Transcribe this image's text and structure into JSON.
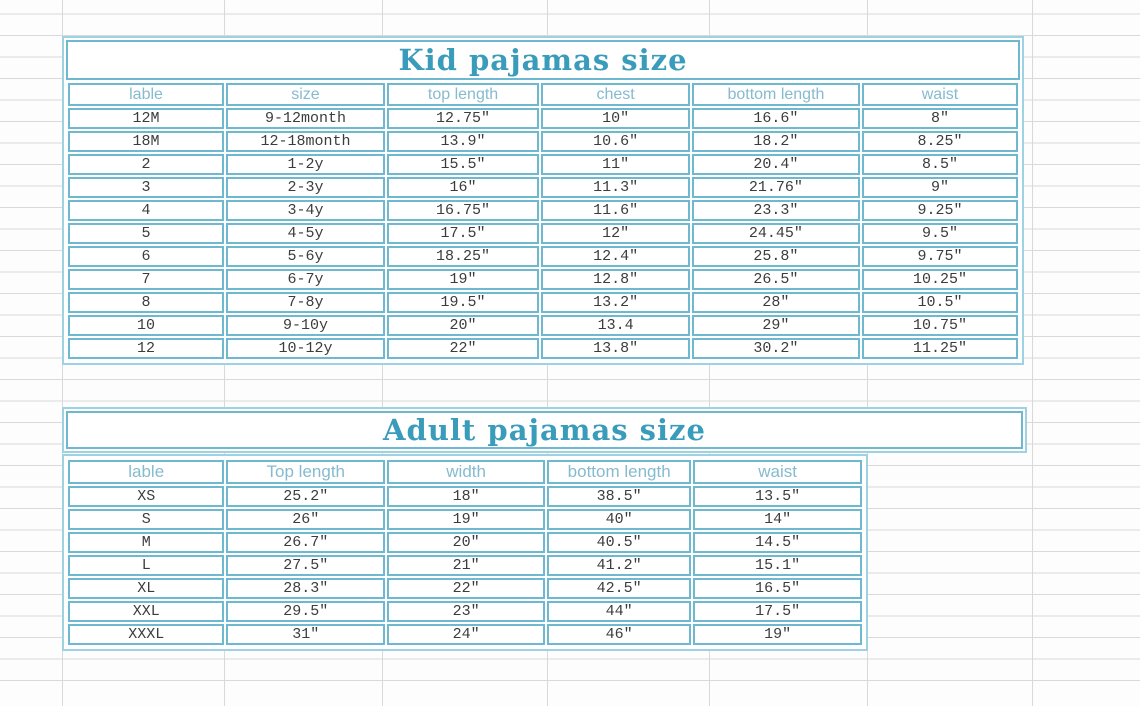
{
  "colors": {
    "title_teal": "#3a9cbb",
    "border_teal": "#6fb9d0",
    "outer_border_teal": "#9ed2e2",
    "header_text_teal": "#85bbce",
    "data_text": "#3c3c3c",
    "gridline_gray": "#d9d9d9"
  },
  "kid_table": {
    "title": "Kid pajamas size",
    "headers": [
      "lable",
      "size",
      "top length",
      "chest",
      "bottom length",
      "waist"
    ],
    "rows": [
      [
        "12M",
        "9-12month",
        "12.75″",
        "10″",
        "16.6″",
        "8″"
      ],
      [
        "18M",
        "12-18month",
        "13.9″",
        "10.6″",
        "18.2″",
        "8.25″"
      ],
      [
        "2",
        "1-2y",
        "15.5″",
        "11″",
        "20.4″",
        "8.5″"
      ],
      [
        "3",
        "2-3y",
        "16″",
        "11.3″",
        "21.76″",
        "9″"
      ],
      [
        "4",
        "3-4y",
        "16.75″",
        "11.6″",
        "23.3″",
        "9.25″"
      ],
      [
        "5",
        "4-5y",
        "17.5″",
        "12″",
        "24.45″",
        "9.5″"
      ],
      [
        "6",
        "5-6y",
        "18.25″",
        "12.4″",
        "25.8″",
        "9.75″"
      ],
      [
        "7",
        "6-7y",
        "19″",
        "12.8″",
        "26.5″",
        "10.25″"
      ],
      [
        "8",
        "7-8y",
        "19.5″",
        "13.2″",
        "28″",
        "10.5″"
      ],
      [
        "10",
        "9-10y",
        "20″",
        "13.4",
        "29″",
        "10.75″"
      ],
      [
        "12",
        "10-12y",
        "22″",
        "13.8″",
        "30.2″",
        "11.25″"
      ]
    ]
  },
  "adult_table": {
    "title": "Adult pajamas size",
    "headers": [
      "lable",
      "Top length",
      "width",
      "bottom length",
      "waist"
    ],
    "rows": [
      [
        "XS",
        "25.2″",
        "18″",
        "38.5″",
        "13.5″"
      ],
      [
        "S",
        "26″",
        "19″",
        "40″",
        "14″"
      ],
      [
        "M",
        "26.7″",
        "20″",
        "40.5″",
        "14.5″"
      ],
      [
        "L",
        "27.5″",
        "21″",
        "41.2″",
        "15.1″"
      ],
      [
        "XL",
        "28.3″",
        "22″",
        "42.5″",
        "16.5″"
      ],
      [
        "XXL",
        "29.5″",
        "23″",
        "44″",
        "17.5″"
      ],
      [
        "XXXL",
        "31″",
        "24″",
        "46″",
        "19″"
      ]
    ]
  }
}
